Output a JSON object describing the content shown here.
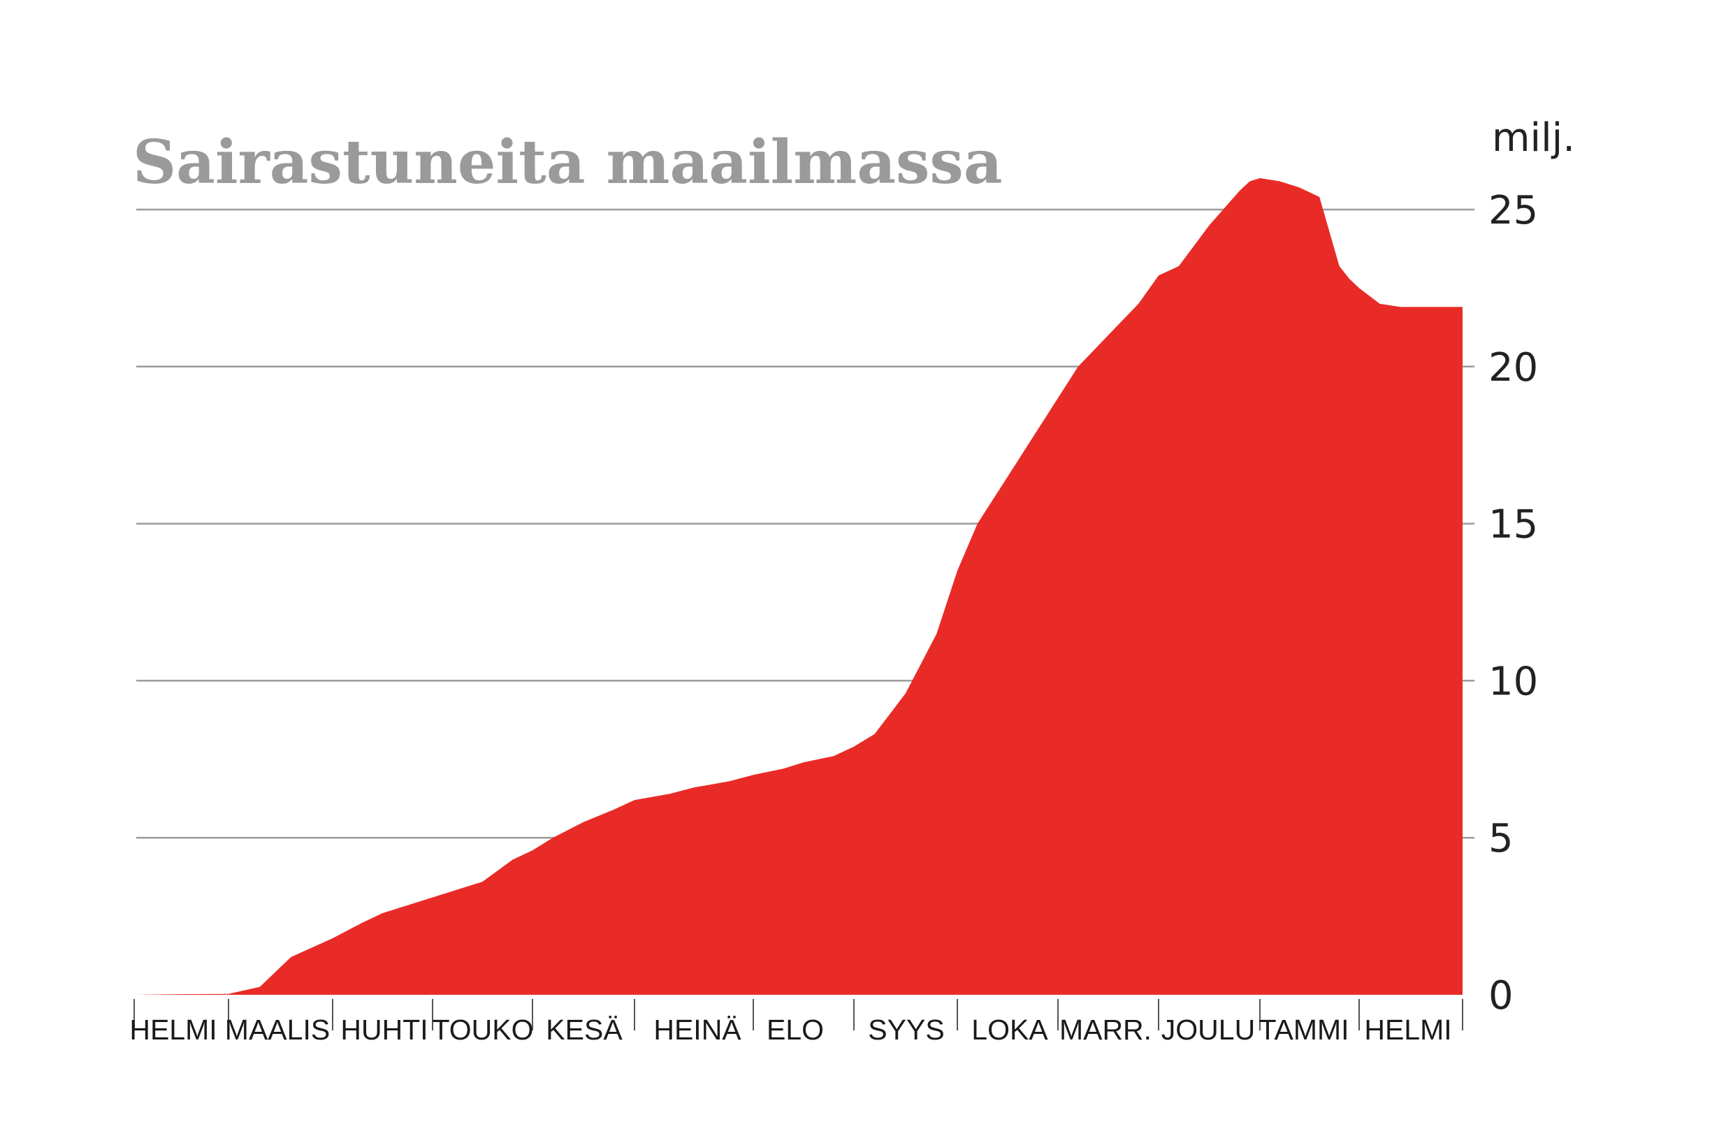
{
  "chart_data": {
    "type": "area",
    "title": "Sairastuneita maailmassa",
    "y_unit": "milj.",
    "ylim": [
      0,
      26
    ],
    "y_ticks": [
      0,
      5,
      10,
      15,
      20,
      25
    ],
    "y_tick_labels": [
      "0",
      "5",
      "10",
      "15",
      "20",
      "25"
    ],
    "grid": true,
    "color": "#e92b27",
    "months": [
      "HELMI",
      "MAALIS",
      "HUHTI",
      "TOUKO",
      "KESÄ",
      "HEINÄ",
      "ELO",
      "SYYS",
      "LOKA",
      "MARR.",
      "JOULU",
      "TAMMI",
      "HELMI"
    ],
    "x": [
      0,
      0.5,
      1.0,
      1.3,
      1.6,
      2.0,
      2.3,
      2.5,
      2.7,
      3.0,
      3.2,
      3.5,
      3.8,
      4.0,
      4.2,
      4.5,
      4.8,
      5.0,
      5.3,
      5.5,
      5.8,
      6.0,
      6.3,
      6.5,
      6.8,
      7.0,
      7.2,
      7.5,
      7.8,
      8.0,
      8.2,
      8.5,
      8.6,
      8.8,
      9.0,
      9.2,
      9.5,
      9.8,
      10.0,
      10.2,
      10.5,
      10.8,
      10.9,
      11.0,
      11.2,
      11.4,
      11.6,
      11.8,
      11.9,
      12.0,
      12.2,
      12.4,
      12.5,
      12.8,
      13.0
    ],
    "values": [
      0,
      0.02,
      0.03,
      0.25,
      1.2,
      1.8,
      2.3,
      2.6,
      2.8,
      3.1,
      3.3,
      3.6,
      4.3,
      4.6,
      5.0,
      5.5,
      5.9,
      6.2,
      6.4,
      6.6,
      6.8,
      7.0,
      7.2,
      7.4,
      7.6,
      7.9,
      8.3,
      9.6,
      11.5,
      13.5,
      15.0,
      16.5,
      17.0,
      18.0,
      19.0,
      20.0,
      21.0,
      22.0,
      22.9,
      23.2,
      24.5,
      25.6,
      25.9,
      26.0,
      25.9,
      25.7,
      25.4,
      23.2,
      22.8,
      22.5,
      22.0,
      21.9,
      21.9,
      21.9,
      21.9
    ]
  }
}
